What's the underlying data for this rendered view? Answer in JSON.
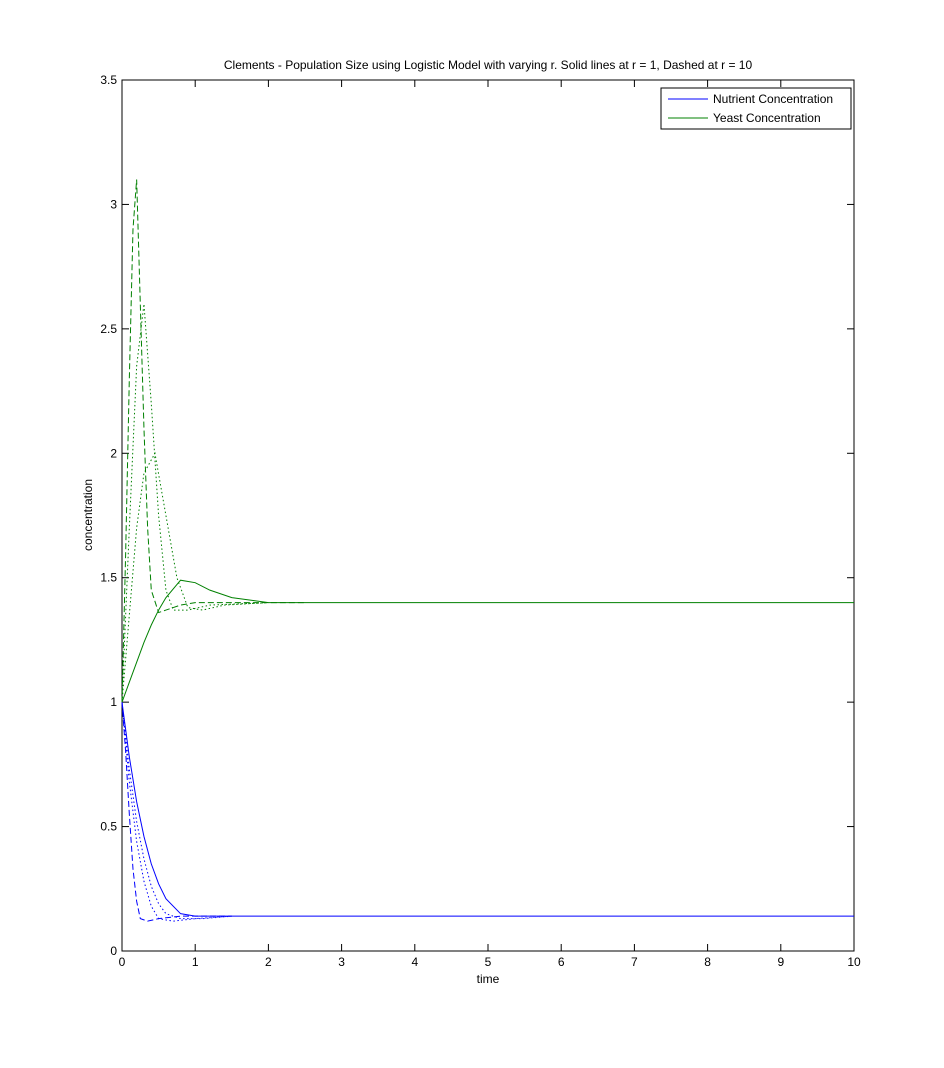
{
  "chart_data": {
    "type": "line",
    "title": "Clements - Population Size using Logistic Model with varying r. Solid lines at r = 1, Dashed at r = 10",
    "xlabel": "time",
    "ylabel": "concentration",
    "xlim": [
      0,
      10
    ],
    "ylim": [
      0,
      3.5
    ],
    "xticks": [
      0,
      1,
      2,
      3,
      4,
      5,
      6,
      7,
      8,
      9,
      10
    ],
    "yticks": [
      0,
      0.5,
      1,
      1.5,
      2,
      2.5,
      3,
      3.5
    ],
    "grid": false,
    "legend": "northeast",
    "series": [
      {
        "name": "Nutrient Concentration",
        "color": "#0000ff",
        "dash": "solid",
        "x": [
          0,
          0.1,
          0.2,
          0.3,
          0.4,
          0.5,
          0.6,
          0.8,
          1,
          1.5,
          2,
          3,
          4,
          5,
          6,
          7,
          8,
          9,
          10
        ],
        "values": [
          1,
          0.78,
          0.6,
          0.46,
          0.35,
          0.27,
          0.21,
          0.15,
          0.14,
          0.14,
          0.14,
          0.14,
          0.14,
          0.14,
          0.14,
          0.14,
          0.14,
          0.14,
          0.14
        ]
      },
      {
        "name": "Yeast Concentration",
        "color": "#008000",
        "dash": "solid",
        "x": [
          0,
          0.1,
          0.2,
          0.3,
          0.4,
          0.5,
          0.6,
          0.8,
          1,
          1.2,
          1.5,
          2,
          2.5,
          3,
          4,
          5,
          6,
          7,
          8,
          9,
          10
        ],
        "values": [
          1,
          1.08,
          1.16,
          1.24,
          1.31,
          1.37,
          1.42,
          1.49,
          1.48,
          1.45,
          1.42,
          1.4,
          1.4,
          1.4,
          1.4,
          1.4,
          1.4,
          1.4,
          1.4,
          1.4,
          1.4
        ]
      },
      {
        "color": "#0000ff",
        "dash": "dashed",
        "x": [
          0,
          0.05,
          0.1,
          0.15,
          0.2,
          0.25,
          0.35,
          0.5,
          0.8,
          1.5
        ],
        "values": [
          1,
          0.8,
          0.55,
          0.33,
          0.2,
          0.13,
          0.12,
          0.13,
          0.14,
          0.14
        ]
      },
      {
        "color": "#008000",
        "dash": "dashed",
        "x": [
          0,
          0.05,
          0.1,
          0.15,
          0.2,
          0.25,
          0.3,
          0.35,
          0.4,
          0.5,
          0.6,
          0.8,
          1,
          2.5
        ],
        "values": [
          1,
          1.6,
          2.3,
          2.9,
          3.1,
          2.6,
          2.1,
          1.7,
          1.45,
          1.36,
          1.37,
          1.39,
          1.4,
          1.4
        ]
      },
      {
        "color": "#0000ff",
        "dash": "dotted",
        "x": [
          0,
          0.1,
          0.2,
          0.3,
          0.4,
          0.5,
          0.7,
          1,
          1.5
        ],
        "values": [
          1,
          0.68,
          0.44,
          0.28,
          0.18,
          0.13,
          0.12,
          0.13,
          0.14
        ]
      },
      {
        "color": "#008000",
        "dash": "dotted",
        "x": [
          0,
          0.1,
          0.2,
          0.3,
          0.4,
          0.5,
          0.6,
          0.7,
          0.9,
          1.2,
          2
        ],
        "values": [
          1,
          1.7,
          2.35,
          2.6,
          2.2,
          1.75,
          1.45,
          1.37,
          1.37,
          1.39,
          1.4
        ]
      },
      {
        "color": "#0000ff",
        "dash": "dotted",
        "x": [
          0,
          0.1,
          0.2,
          0.3,
          0.4,
          0.5,
          0.6,
          0.8,
          1.1,
          1.5
        ],
        "values": [
          1,
          0.73,
          0.52,
          0.37,
          0.26,
          0.19,
          0.15,
          0.13,
          0.13,
          0.14
        ]
      },
      {
        "color": "#008000",
        "dash": "dotted",
        "x": [
          0,
          0.1,
          0.2,
          0.3,
          0.45,
          0.6,
          0.75,
          0.9,
          1.1,
          1.4,
          2
        ],
        "values": [
          1,
          1.35,
          1.7,
          1.92,
          2.0,
          1.75,
          1.5,
          1.38,
          1.37,
          1.39,
          1.4
        ]
      }
    ]
  }
}
